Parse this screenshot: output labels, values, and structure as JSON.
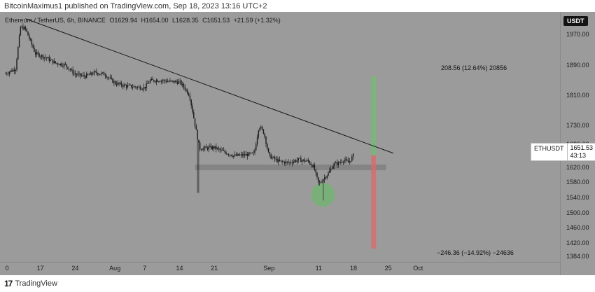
{
  "header": {
    "text": "BitcoinMaximus1 published on TradingView.com, Sep 18, 2023 13:16 UTC+2"
  },
  "legend": {
    "instrument": "Ethereum / TetherUS, 6h, BINANCE",
    "open": "O1629.94",
    "high": "H1654.00",
    "low": "L1628.35",
    "close": "C1651.53",
    "change": "+21.59 (+1.32%)"
  },
  "currency": "USDT",
  "price_tag": {
    "symbol": "ETHUSDT",
    "price": "1651.53",
    "countdown": "43:13"
  },
  "annotations": {
    "upper": "208.56 (12.64%) 20856",
    "lower": "−246.36 (−14.92%) −24636"
  },
  "footer": {
    "logo": "17",
    "brand": "TradingView"
  },
  "colors": {
    "background": "#9b9b9b",
    "candle": "#1a1a1a",
    "trendline": "#1a1a1a",
    "support_zone": "#7c7c7c",
    "highlight": "#5fbf5f",
    "range_up": "#6fbf6f",
    "range_down": "#d96b6b"
  },
  "chart_data": {
    "type": "candlestick",
    "title": "Ethereum / TetherUS, 6h, BINANCE",
    "y_ticks": [
      "1970.00",
      "1890.00",
      "1810.00",
      "1730.00",
      "1680.00",
      "1620.00",
      "1580.00",
      "1540.00",
      "1500.00",
      "1460.00",
      "1420.00",
      "1384.00"
    ],
    "x_ticks": [
      "0",
      "17",
      "24",
      "Aug",
      "7",
      "14",
      "21",
      "Sep",
      "11",
      "18",
      "25",
      "Oct"
    ],
    "ylim": [
      1370,
      2030
    ],
    "trendline": {
      "from": [
        "Jul 14",
        2012
      ],
      "to": [
        "Sep 26",
        1657
      ]
    },
    "support_zone": [
      1612,
      1627
    ],
    "highlight": {
      "date": "Sep 12",
      "price": 1547
    },
    "range_up": {
      "from": 1651.53,
      "to": 1860
    },
    "range_down": {
      "from": 1651.53,
      "to": 1405
    },
    "price_series": [
      [
        "Jul 10",
        1867
      ],
      [
        "Jul 12",
        1880
      ],
      [
        "Jul 13",
        1990
      ],
      [
        "Jul 14",
        1985
      ],
      [
        "Jul 16",
        1920
      ],
      [
        "Jul 18",
        1910
      ],
      [
        "Jul 20",
        1895
      ],
      [
        "Jul 22",
        1890
      ],
      [
        "Jul 24",
        1865
      ],
      [
        "Jul 26",
        1860
      ],
      [
        "Jul 28",
        1870
      ],
      [
        "Jul 30",
        1865
      ],
      [
        "Aug 1",
        1842
      ],
      [
        "Aug 3",
        1835
      ],
      [
        "Aug 5",
        1832
      ],
      [
        "Aug 7",
        1830
      ],
      [
        "Aug 8",
        1848
      ],
      [
        "Aug 10",
        1850
      ],
      [
        "Aug 12",
        1846
      ],
      [
        "Aug 14",
        1845
      ],
      [
        "Aug 15",
        1830
      ],
      [
        "Aug 16",
        1810
      ],
      [
        "Aug 17",
        1740
      ],
      [
        "Aug 18",
        1670
      ],
      [
        "Aug 19",
        1670
      ],
      [
        "Aug 21",
        1672
      ],
      [
        "Aug 23",
        1660
      ],
      [
        "Aug 25",
        1650
      ],
      [
        "Aug 27",
        1652
      ],
      [
        "Aug 29",
        1655
      ],
      [
        "Aug 30",
        1730
      ],
      [
        "Aug 31",
        1710
      ],
      [
        "Sep 1",
        1650
      ],
      [
        "Sep 3",
        1635
      ],
      [
        "Sep 5",
        1632
      ],
      [
        "Sep 7",
        1640
      ],
      [
        "Sep 9",
        1635
      ],
      [
        "Sep 10",
        1620
      ],
      [
        "Sep 11",
        1575
      ],
      [
        "Sep 12",
        1590
      ],
      [
        "Sep 13",
        1605
      ],
      [
        "Sep 14",
        1628
      ],
      [
        "Sep 15",
        1630
      ],
      [
        "Sep 16",
        1640
      ],
      [
        "Sep 17",
        1632
      ],
      [
        "Sep 18",
        1651.53
      ]
    ]
  }
}
